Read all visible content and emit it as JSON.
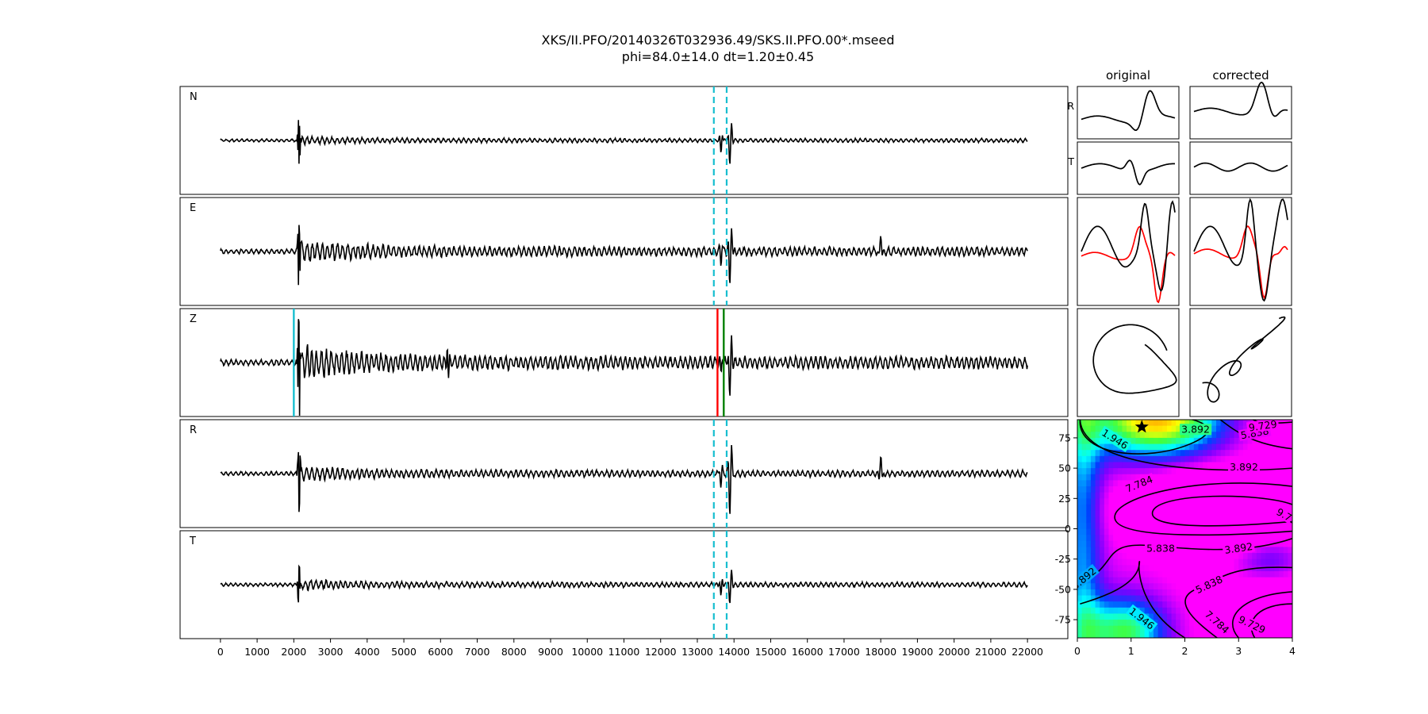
{
  "header": {
    "title": "XKS/II.PFO/20140326T032936.49/SKS.II.PFO.00*.mseed",
    "subtitle": "phi=84.0±14.0 dt=1.20±0.45"
  },
  "chart_data": [
    {
      "type": "line",
      "name": "trace-panels",
      "panels": [
        {
          "label": "N",
          "markers": "dashed-window"
        },
        {
          "label": "E",
          "markers": "dashed-window"
        },
        {
          "label": "Z",
          "markers": "picks"
        },
        {
          "label": "R",
          "markers": "dashed-window"
        },
        {
          "label": "T",
          "markers": "dashed-window"
        }
      ],
      "xlim": [
        -1100,
        23100
      ],
      "xticks": [
        0,
        1000,
        2000,
        3000,
        4000,
        5000,
        6000,
        7000,
        8000,
        9000,
        10000,
        11000,
        12000,
        13000,
        14000,
        15000,
        16000,
        17000,
        18000,
        19000,
        20000,
        21000,
        22000
      ],
      "trace_range": [
        0,
        22000
      ],
      "arrival_sample": 2100,
      "shear_arrival_sample": 13900,
      "window": [
        13450,
        13800
      ],
      "picks": [
        {
          "x": 2000,
          "color": "#17becf"
        },
        {
          "x": 13550,
          "color": "#ff0000"
        },
        {
          "x": 13720,
          "color": "#008000"
        }
      ],
      "late_pulse_sample": 18000,
      "marker_color": "#17becf",
      "trace_color": "#000000"
    },
    {
      "type": "line",
      "name": "particle-panels",
      "column_titles": [
        "original",
        "corrected"
      ],
      "row_labels": [
        "R",
        "T"
      ],
      "colors": {
        "fast": "#000000",
        "slow": "#ff0000"
      }
    },
    {
      "type": "heatmap",
      "name": "error-surface",
      "xlim": [
        0,
        4
      ],
      "ylim": [
        -90,
        90
      ],
      "xticks": [
        0,
        1,
        2,
        3,
        4
      ],
      "yticks": [
        -75,
        -50,
        -25,
        0,
        25,
        50,
        75
      ],
      "contour_levels": [
        "1.946",
        "3.892",
        "5.838",
        "7.784",
        "9.729"
      ],
      "best": {
        "dt": 1.2,
        "phi": 84
      },
      "colormap": [
        "#ff0000",
        "#ff8000",
        "#ffff00",
        "#40ff40",
        "#00ffff",
        "#0040ff",
        "#8000ff",
        "#ff00ff"
      ]
    }
  ]
}
